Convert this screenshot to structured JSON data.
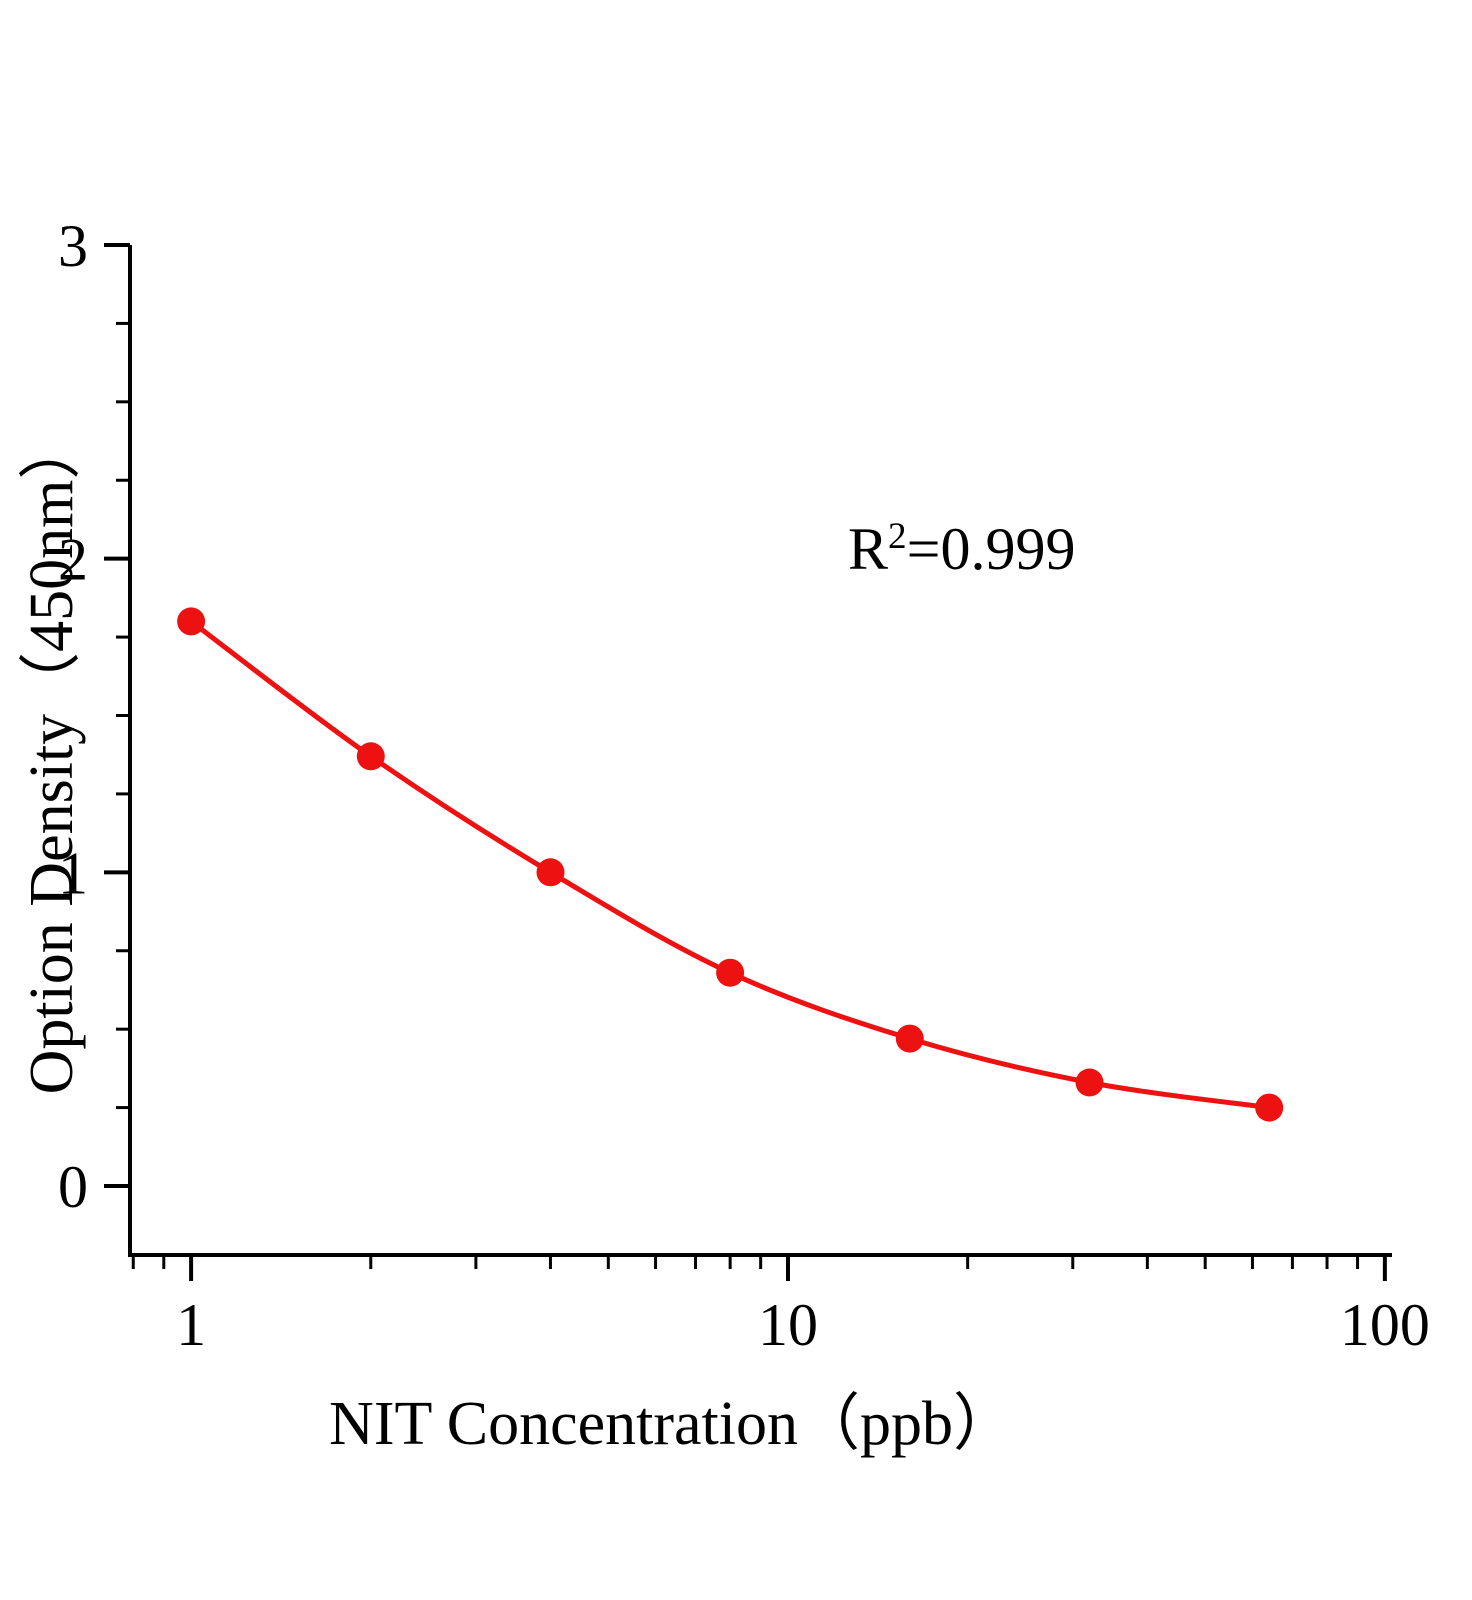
{
  "figure": {
    "background": "#ffffff"
  },
  "chart_data": {
    "type": "line",
    "title": "",
    "xlabel": "NIT Concentration（ppb）",
    "ylabel": "Option Density（450nm）",
    "x_scale": "log",
    "x": [
      1,
      2,
      4,
      8,
      16,
      32,
      64
    ],
    "y": [
      1.8,
      1.37,
      1.0,
      0.68,
      0.47,
      0.33,
      0.25
    ],
    "xlim": [
      0.79,
      102
    ],
    "ylim": [
      -0.22,
      3
    ],
    "x_tick_values": [
      1,
      10,
      100
    ],
    "x_tick_labels": [
      "1",
      "10",
      "100"
    ],
    "y_tick_values": [
      0,
      1,
      2,
      3
    ],
    "y_tick_labels": [
      "0",
      "1",
      "2",
      "3"
    ],
    "y_minor_step": 0.25,
    "grid": false,
    "legend": null,
    "annotation": {
      "base": "R",
      "sup": "2",
      "rest": "=0.999"
    },
    "line_color": "#ee1111",
    "marker_color": "#ee1111",
    "marker_radius": 14,
    "axis_color": "#000000"
  }
}
